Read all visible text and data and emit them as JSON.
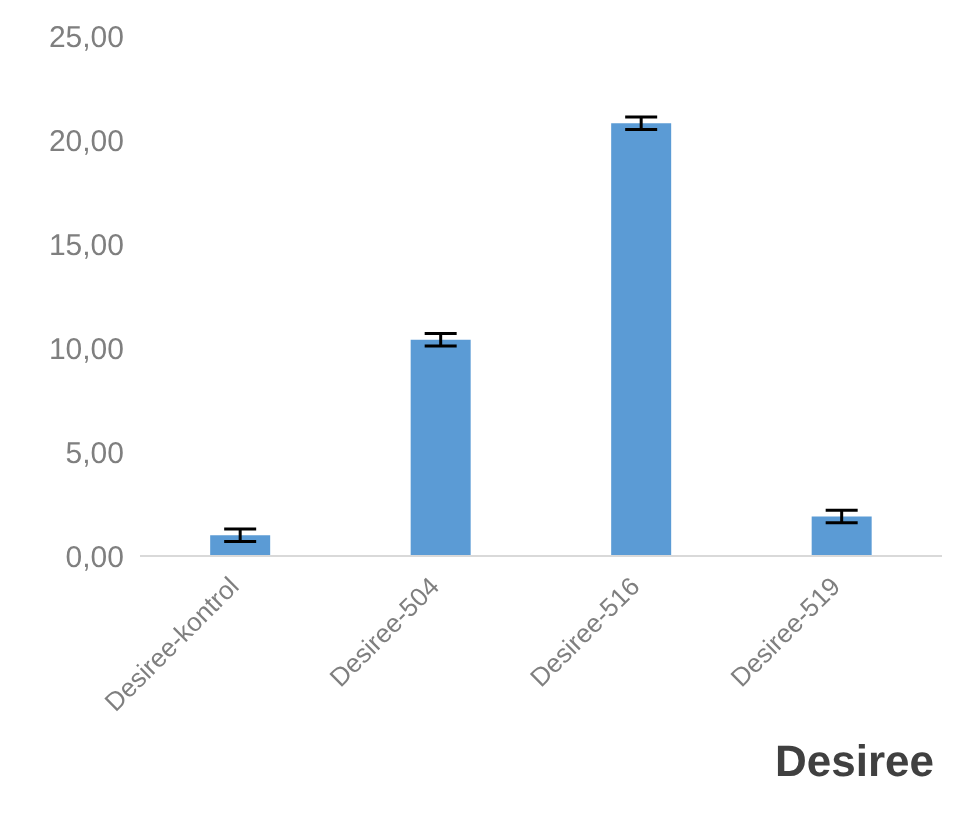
{
  "chart_data": {
    "type": "bar",
    "xlabel": "Desiree",
    "categories": [
      "Desiree-kontrol",
      "Desiree-504",
      "Desiree-516",
      "Desiree-519"
    ],
    "values": [
      1.0,
      10.4,
      20.8,
      1.9
    ],
    "errors": [
      0.3,
      0.3,
      0.3,
      0.3
    ],
    "color": "#5b9bd5",
    "ylim": [
      0,
      25
    ],
    "yticks": [
      {
        "value": 0,
        "label": "0,00"
      },
      {
        "value": 5,
        "label": "5,00"
      },
      {
        "value": 10,
        "label": "10,00"
      },
      {
        "value": 15,
        "label": "15,00"
      },
      {
        "value": 20,
        "label": "20,00"
      },
      {
        "value": 25,
        "label": "25,00"
      }
    ],
    "grid": false,
    "legend": false
  }
}
